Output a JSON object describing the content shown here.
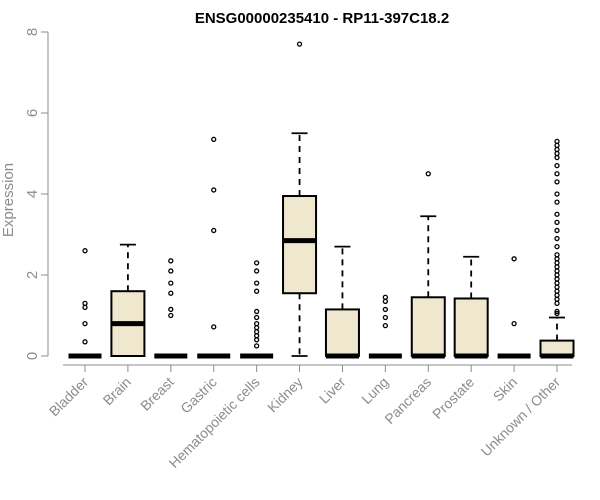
{
  "chart_data": {
    "type": "boxplot",
    "title": "ENSG00000235410 - RP11-397C18.2",
    "xlabel": "",
    "ylabel": "Expression",
    "ylim": [
      0,
      8
    ],
    "yticks": [
      0,
      2,
      4,
      6,
      8
    ],
    "categories": [
      "Bladder",
      "Brain",
      "Breast",
      "Gastric",
      "Hematopoietic cells",
      "Kidney",
      "Liver",
      "Lung",
      "Pancreas",
      "Prostate",
      "Skin",
      "Unknown / Other"
    ],
    "box_fill": "#efe8cf",
    "boxes": [
      {
        "q1": 0,
        "median": 0,
        "q3": 0,
        "whisker_low": 0,
        "whisker_high": 0,
        "outliers": [
          2.6,
          1.3,
          1.2,
          0.8,
          0.35
        ]
      },
      {
        "q1": 0,
        "median": 0.8,
        "q3": 1.6,
        "whisker_low": 0,
        "whisker_high": 2.75,
        "outliers": []
      },
      {
        "q1": 0,
        "median": 0,
        "q3": 0,
        "whisker_low": 0,
        "whisker_high": 0,
        "outliers": [
          2.35,
          2.1,
          1.8,
          1.55,
          1.15,
          1.0
        ]
      },
      {
        "q1": 0,
        "median": 0,
        "q3": 0,
        "whisker_low": 0,
        "whisker_high": 0,
        "outliers": [
          5.35,
          4.1,
          3.1,
          0.72
        ]
      },
      {
        "q1": 0,
        "median": 0,
        "q3": 0,
        "whisker_low": 0,
        "whisker_high": 0,
        "outliers": [
          2.3,
          2.1,
          1.8,
          1.6,
          1.1,
          0.95,
          0.8,
          0.7,
          0.6,
          0.5,
          0.4,
          0.25
        ]
      },
      {
        "q1": 1.55,
        "median": 2.85,
        "q3": 3.95,
        "whisker_low": 0,
        "whisker_high": 5.5,
        "outliers": [
          7.7
        ]
      },
      {
        "q1": 0,
        "median": 0,
        "q3": 1.15,
        "whisker_low": 0,
        "whisker_high": 2.7,
        "outliers": []
      },
      {
        "q1": 0,
        "median": 0,
        "q3": 0,
        "whisker_low": 0,
        "whisker_high": 0,
        "outliers": [
          1.45,
          1.35,
          1.15,
          0.95,
          0.75
        ]
      },
      {
        "q1": 0,
        "median": 0,
        "q3": 1.45,
        "whisker_low": 0,
        "whisker_high": 3.45,
        "outliers": [
          4.5
        ]
      },
      {
        "q1": 0,
        "median": 0,
        "q3": 1.42,
        "whisker_low": 0,
        "whisker_high": 2.45,
        "outliers": []
      },
      {
        "q1": 0,
        "median": 0,
        "q3": 0,
        "whisker_low": 0,
        "whisker_high": 0,
        "outliers": [
          2.4,
          0.8
        ]
      },
      {
        "q1": 0,
        "median": 0,
        "q3": 0.38,
        "whisker_low": 0,
        "whisker_high": 0.95,
        "outliers": [
          5.3,
          5.2,
          5.1,
          5.0,
          4.9,
          4.7,
          4.5,
          4.3,
          4.0,
          3.8,
          3.5,
          3.3,
          3.1,
          2.9,
          2.7,
          2.5,
          2.4,
          2.3,
          2.2,
          2.1,
          2.0,
          1.9,
          1.8,
          1.7,
          1.6,
          1.5,
          1.4,
          1.3,
          1.1,
          1.05
        ]
      }
    ]
  }
}
